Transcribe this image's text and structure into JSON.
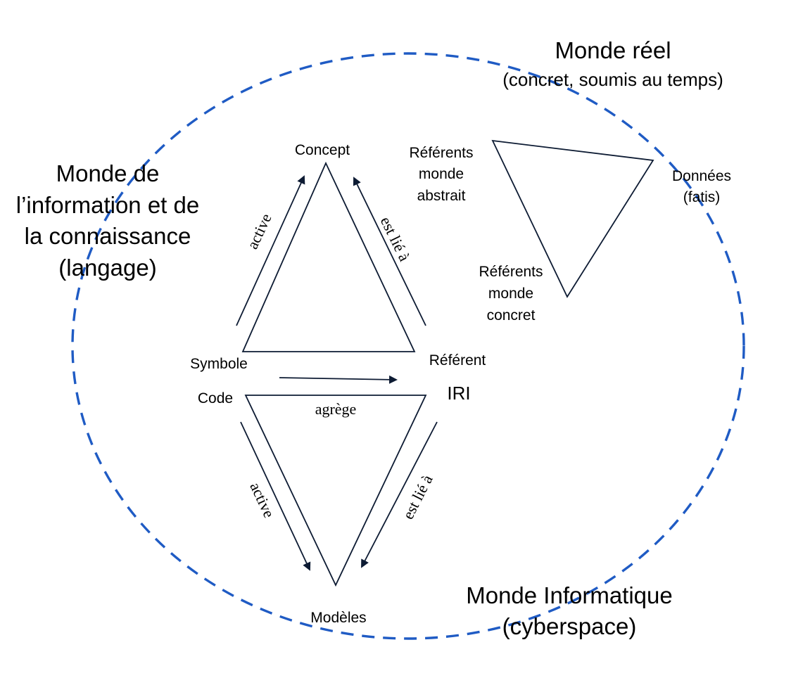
{
  "worlds": {
    "real": {
      "title": "Monde réel",
      "subtitle": "(concret, soumis au temps)"
    },
    "information": {
      "line1": "Monde de",
      "line2": "l’information et de",
      "line3": "la connaissance",
      "line4": "(langage)"
    },
    "computing": {
      "title": "Monde Informatique",
      "subtitle": "(cyberspace)"
    }
  },
  "semiotic_triangle": {
    "concept": "Concept",
    "symbole": "Symbole",
    "referent": "Référent",
    "edge_left": "active",
    "edge_right": "est lié à"
  },
  "computing_triangle": {
    "code": "Code",
    "iri": "IRI",
    "modeles": "Modèles",
    "edge_top": "agrège",
    "edge_left": "active",
    "edge_right": "est lié à"
  },
  "referents_triangle": {
    "abstract": {
      "line1": "Référents",
      "line2": "monde",
      "line3": "abstrait"
    },
    "concrete": {
      "line1": "Référents",
      "line2": "monde",
      "line3": "concret"
    },
    "data": {
      "line1": "Données",
      "line2": "(fatis)"
    }
  },
  "colors": {
    "boundary_dash": "#1f5bc4",
    "lines": "#0d1b33",
    "text": "#000000"
  }
}
